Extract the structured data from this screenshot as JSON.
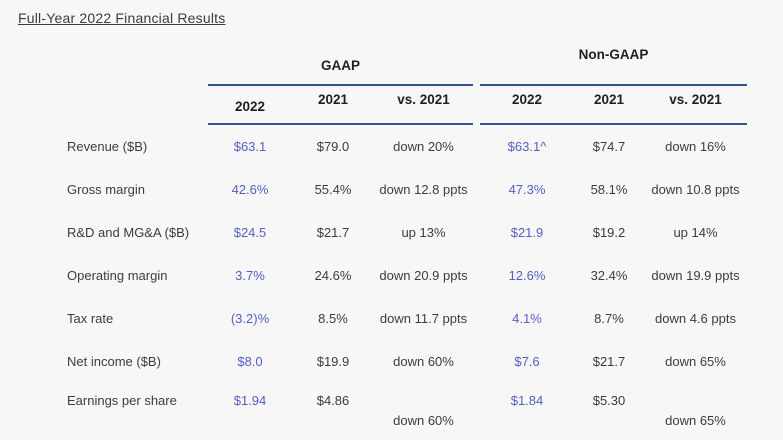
{
  "page": {
    "title": "Full-Year 2022 Financial Results"
  },
  "colors": {
    "background": "#f7f7f8",
    "rule_line": "#33518e",
    "accent_2022_value": "#535fc2",
    "text": "#3c3c3c",
    "heading": "#1f1f1f"
  },
  "table": {
    "group_headers": {
      "gaap": "GAAP",
      "non_gaap": "Non-GAAP"
    },
    "sub_headers": {
      "gaap": [
        "2022",
        "2021",
        "vs. 2021"
      ],
      "non_gaap": [
        "2022",
        "2021",
        "vs. 2021"
      ]
    },
    "rows": [
      {
        "label": "Revenue ($B)",
        "cells": [
          "$63.1",
          "$79.0",
          "down 20%",
          "$63.1^",
          "$74.7",
          "down 16%"
        ]
      },
      {
        "label": "Gross margin",
        "cells": [
          "42.6%",
          "55.4%",
          "down 12.8 ppts",
          "47.3%",
          "58.1%",
          "down 10.8 ppts"
        ]
      },
      {
        "label": "R&D and MG&A ($B)",
        "cells": [
          "$24.5",
          "$21.7",
          "up 13%",
          "$21.9",
          "$19.2",
          "up 14%"
        ]
      },
      {
        "label": "Operating margin",
        "cells": [
          "3.7%",
          "24.6%",
          "down 20.9 ppts",
          "12.6%",
          "32.4%",
          "down 19.9 ppts"
        ]
      },
      {
        "label": "Tax rate",
        "cells": [
          "(3.2)%",
          "8.5%",
          "down 11.7 ppts",
          "4.1%",
          "8.7%",
          "down 4.6 ppts"
        ]
      },
      {
        "label": "Net income ($B)",
        "cells": [
          "$8.0",
          "$19.9",
          "down 60%",
          "$7.6",
          "$21.7",
          "down 65%"
        ]
      },
      {
        "label": "Earnings per share",
        "cells": [
          "$1.94",
          "$4.86",
          "down 60%",
          "$1.84",
          "$5.30",
          "down 65%"
        ]
      }
    ]
  }
}
